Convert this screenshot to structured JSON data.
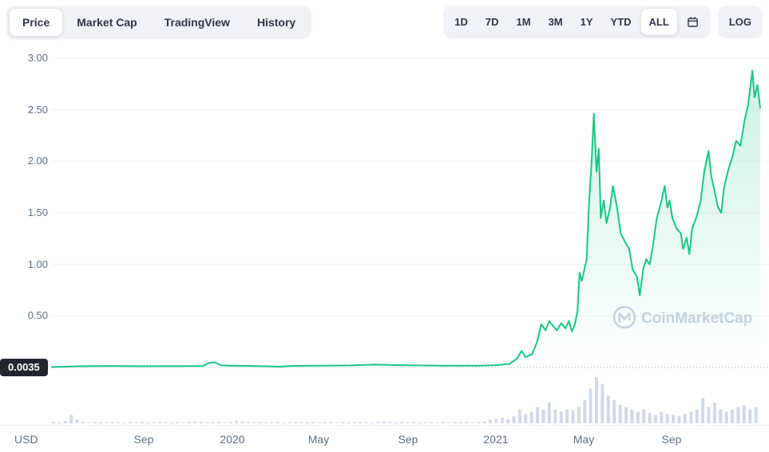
{
  "toolbar": {
    "tabs": [
      {
        "label": "Price",
        "active": true
      },
      {
        "label": "Market Cap",
        "active": false
      },
      {
        "label": "TradingView",
        "active": false
      },
      {
        "label": "History",
        "active": false
      }
    ],
    "ranges": [
      {
        "label": "1D",
        "active": false
      },
      {
        "label": "7D",
        "active": false
      },
      {
        "label": "1M",
        "active": false
      },
      {
        "label": "3M",
        "active": false
      },
      {
        "label": "1Y",
        "active": false
      },
      {
        "label": "YTD",
        "active": false
      },
      {
        "label": "ALL",
        "active": true
      }
    ],
    "log_label": "LOG"
  },
  "axes": {
    "y_labels": [
      "3.00",
      "2.50",
      "2.00",
      "1.50",
      "1.00",
      "0.50"
    ],
    "base_price_label": "0.0035",
    "x_labels": [
      "Sep",
      "2020",
      "May",
      "Sep",
      "2021",
      "May",
      "Sep"
    ],
    "currency": "USD"
  },
  "watermark": {
    "text": "CoinMarketCap"
  },
  "colors": {
    "line": "#16c784",
    "volume": "#d3d9e8",
    "grid": "#eef1f6",
    "dotted": "#9aa5bb",
    "badge_bg": "#222531",
    "watermark": "#ccd2df"
  },
  "chart_data": {
    "type": "line",
    "ylim": [
      0,
      3.0
    ],
    "y_ticks": [
      0.5,
      1.0,
      1.5,
      2.0,
      2.5,
      3.0
    ],
    "base_value": 0.0035,
    "grid": "horizontal",
    "x_tick_labels": [
      "Sep",
      "2020",
      "May",
      "Sep",
      "2021",
      "May",
      "Sep"
    ],
    "x_tick_t": [
      0.13,
      0.255,
      0.377,
      0.503,
      0.627,
      0.751,
      0.875
    ],
    "series": [
      {
        "name": "Price (USD)",
        "points": [
          [
            0.0,
            0.004
          ],
          [
            0.039,
            0.012
          ],
          [
            0.084,
            0.015
          ],
          [
            0.129,
            0.012
          ],
          [
            0.174,
            0.014
          ],
          [
            0.213,
            0.015
          ],
          [
            0.222,
            0.045
          ],
          [
            0.23,
            0.05
          ],
          [
            0.239,
            0.02
          ],
          [
            0.254,
            0.018
          ],
          [
            0.298,
            0.012
          ],
          [
            0.32,
            0.008
          ],
          [
            0.337,
            0.015
          ],
          [
            0.375,
            0.018
          ],
          [
            0.421,
            0.02
          ],
          [
            0.455,
            0.028
          ],
          [
            0.501,
            0.022
          ],
          [
            0.556,
            0.018
          ],
          [
            0.601,
            0.018
          ],
          [
            0.625,
            0.022
          ],
          [
            0.646,
            0.035
          ],
          [
            0.657,
            0.09
          ],
          [
            0.663,
            0.16
          ],
          [
            0.669,
            0.1
          ],
          [
            0.678,
            0.13
          ],
          [
            0.685,
            0.25
          ],
          [
            0.691,
            0.42
          ],
          [
            0.697,
            0.36
          ],
          [
            0.702,
            0.45
          ],
          [
            0.708,
            0.4
          ],
          [
            0.713,
            0.36
          ],
          [
            0.719,
            0.43
          ],
          [
            0.725,
            0.38
          ],
          [
            0.73,
            0.45
          ],
          [
            0.734,
            0.35
          ],
          [
            0.738,
            0.41
          ],
          [
            0.742,
            0.55
          ],
          [
            0.745,
            0.92
          ],
          [
            0.748,
            0.84
          ],
          [
            0.752,
            0.96
          ],
          [
            0.755,
            1.05
          ],
          [
            0.758,
            1.55
          ],
          [
            0.762,
            2.0
          ],
          [
            0.765,
            2.46
          ],
          [
            0.769,
            1.9
          ],
          [
            0.772,
            2.12
          ],
          [
            0.775,
            1.45
          ],
          [
            0.779,
            1.62
          ],
          [
            0.783,
            1.4
          ],
          [
            0.788,
            1.55
          ],
          [
            0.792,
            1.76
          ],
          [
            0.798,
            1.55
          ],
          [
            0.803,
            1.3
          ],
          [
            0.809,
            1.22
          ],
          [
            0.815,
            1.15
          ],
          [
            0.82,
            0.95
          ],
          [
            0.826,
            0.88
          ],
          [
            0.83,
            0.7
          ],
          [
            0.835,
            0.96
          ],
          [
            0.839,
            1.05
          ],
          [
            0.844,
            1.0
          ],
          [
            0.848,
            1.16
          ],
          [
            0.854,
            1.45
          ],
          [
            0.86,
            1.6
          ],
          [
            0.865,
            1.76
          ],
          [
            0.869,
            1.55
          ],
          [
            0.872,
            1.62
          ],
          [
            0.876,
            1.45
          ],
          [
            0.882,
            1.35
          ],
          [
            0.888,
            1.3
          ],
          [
            0.891,
            1.15
          ],
          [
            0.896,
            1.26
          ],
          [
            0.9,
            1.1
          ],
          [
            0.904,
            1.35
          ],
          [
            0.91,
            1.46
          ],
          [
            0.916,
            1.62
          ],
          [
            0.921,
            1.9
          ],
          [
            0.927,
            2.1
          ],
          [
            0.931,
            1.85
          ],
          [
            0.936,
            1.7
          ],
          [
            0.94,
            1.56
          ],
          [
            0.945,
            1.5
          ],
          [
            0.949,
            1.75
          ],
          [
            0.955,
            1.92
          ],
          [
            0.961,
            2.05
          ],
          [
            0.966,
            2.2
          ],
          [
            0.972,
            2.15
          ],
          [
            0.978,
            2.4
          ],
          [
            0.983,
            2.55
          ],
          [
            0.989,
            2.88
          ],
          [
            0.992,
            2.62
          ],
          [
            0.996,
            2.74
          ],
          [
            1.0,
            2.52
          ]
        ]
      }
    ],
    "volume": [
      0.03,
      0.02,
      0.05,
      0.18,
      0.08,
      0.03,
      0.02,
      0.03,
      0.02,
      0.02,
      0.03,
      0.02,
      0.02,
      0.03,
      0.02,
      0.03,
      0.02,
      0.02,
      0.03,
      0.02,
      0.02,
      0.03,
      0.02,
      0.03,
      0.04,
      0.03,
      0.02,
      0.02,
      0.03,
      0.02,
      0.03,
      0.06,
      0.04,
      0.03,
      0.02,
      0.03,
      0.02,
      0.02,
      0.03,
      0.02,
      0.02,
      0.03,
      0.03,
      0.02,
      0.03,
      0.02,
      0.02,
      0.03,
      0.02,
      0.03,
      0.02,
      0.02,
      0.03,
      0.02,
      0.02,
      0.03,
      0.04,
      0.03,
      0.02,
      0.03,
      0.02,
      0.03,
      0.02,
      0.02,
      0.03,
      0.02,
      0.03,
      0.02,
      0.03,
      0.02,
      0.03,
      0.02,
      0.03,
      0.04,
      0.08,
      0.1,
      0.12,
      0.09,
      0.15,
      0.3,
      0.2,
      0.25,
      0.35,
      0.3,
      0.45,
      0.3,
      0.25,
      0.3,
      0.28,
      0.35,
      0.5,
      0.75,
      1.0,
      0.85,
      0.6,
      0.5,
      0.4,
      0.35,
      0.3,
      0.25,
      0.3,
      0.22,
      0.18,
      0.25,
      0.2,
      0.18,
      0.15,
      0.2,
      0.25,
      0.3,
      0.55,
      0.35,
      0.45,
      0.3,
      0.25,
      0.3,
      0.35,
      0.4,
      0.3,
      0.35
    ]
  }
}
